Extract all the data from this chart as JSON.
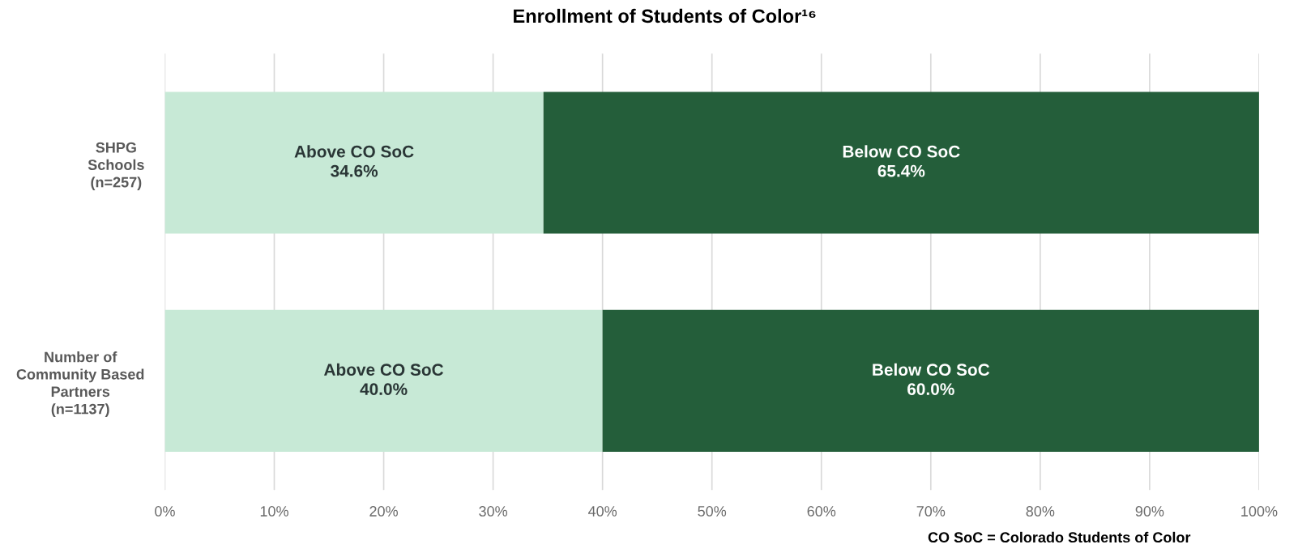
{
  "chart_data": {
    "type": "bar",
    "orientation": "horizontal",
    "stacked": true,
    "title": "Enrollment of Students of Color¹⁶",
    "categories": [
      "SHPG\nSchools\n(n=257)",
      "Number of\nCommunity Based\nPartners\n(n=1137)"
    ],
    "series": [
      {
        "name": "Above CO SoC",
        "color": "#c7e9d6",
        "values": [
          34.6,
          40.0
        ],
        "value_labels": [
          "34.6%",
          "40.0%"
        ]
      },
      {
        "name": "Below CO SoC",
        "color": "#245e3a",
        "values": [
          65.4,
          60.0
        ],
        "value_labels": [
          "65.4%",
          "60.0%"
        ]
      }
    ],
    "xlim": [
      0,
      100
    ],
    "xticks": [
      {
        "value": 0,
        "label": "0%"
      },
      {
        "value": 10,
        "label": "10%"
      },
      {
        "value": 20,
        "label": "20%"
      },
      {
        "value": 30,
        "label": "30%"
      },
      {
        "value": 40,
        "label": "40%"
      },
      {
        "value": 50,
        "label": "50%"
      },
      {
        "value": 60,
        "label": "60%"
      },
      {
        "value": 70,
        "label": "70%"
      },
      {
        "value": 80,
        "label": "80%"
      },
      {
        "value": 90,
        "label": "90%"
      },
      {
        "value": 100,
        "label": "100%"
      }
    ],
    "grid": "x",
    "legend": false,
    "annotations": [
      "CO SoC = Colorado Students of Color"
    ]
  }
}
